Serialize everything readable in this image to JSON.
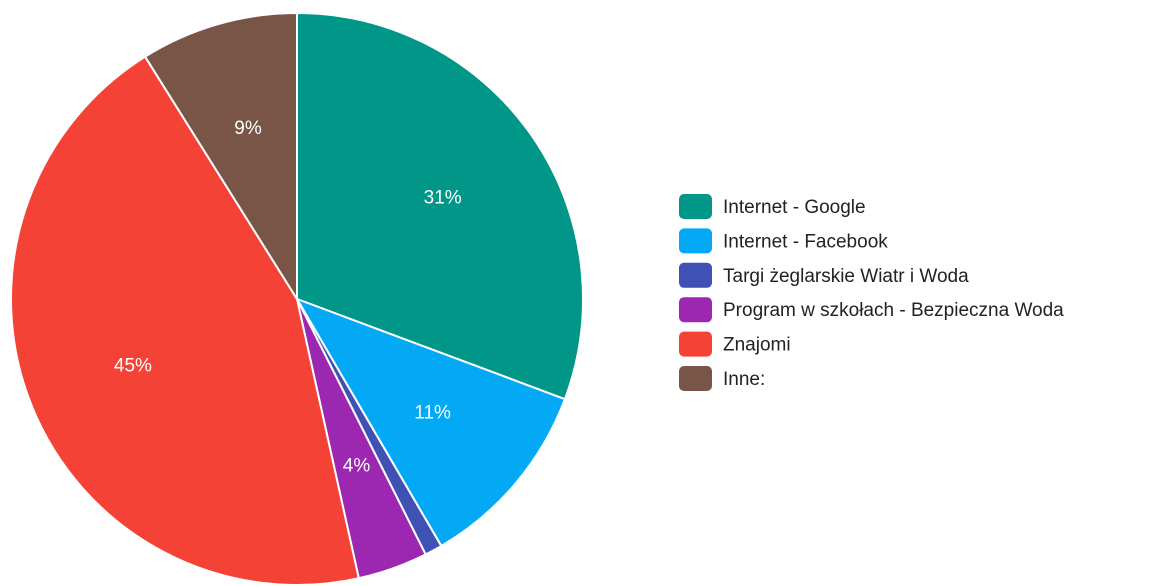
{
  "chart_data": {
    "type": "pie",
    "title": "",
    "legend_position": "right",
    "slices": [
      {
        "label": "Internet - Google",
        "value": 31,
        "display": "31%",
        "color": "#009688"
      },
      {
        "label": "Internet - Facebook",
        "value": 11,
        "display": "11%",
        "color": "#03A9F4"
      },
      {
        "label": "Targi żeglarskie Wiatr i Woda",
        "value": 1,
        "display": "",
        "color": "#3F51B5"
      },
      {
        "label": "Program w szkołach - Bezpieczna Woda",
        "value": 4,
        "display": "4%",
        "color": "#9C27B0"
      },
      {
        "label": "Znajomi",
        "value": 45,
        "display": "45%",
        "color": "#F44336"
      },
      {
        "label": "Inne:",
        "value": 9,
        "display": "9%",
        "color": "#795548"
      }
    ]
  }
}
